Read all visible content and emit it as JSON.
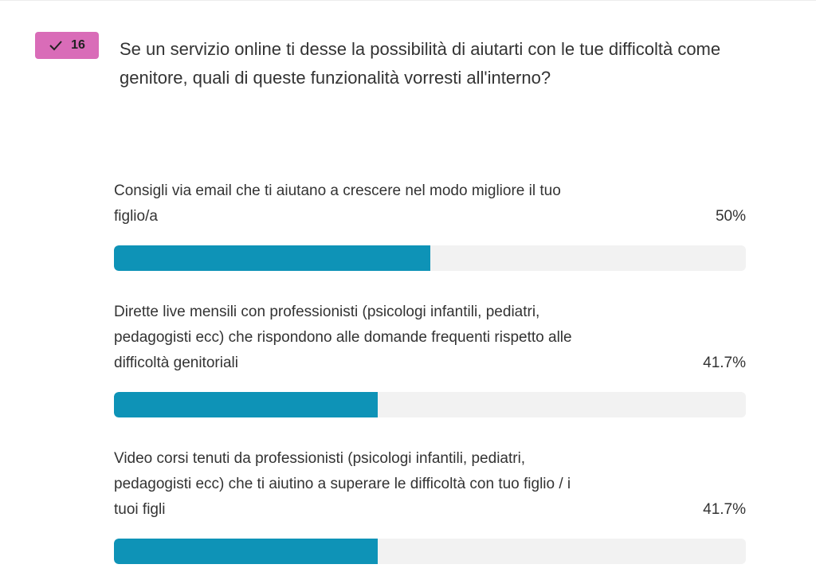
{
  "question": {
    "number": "16",
    "check_icon": "check-icon",
    "badge_color": "#d96cb8",
    "title": "Se un servizio online ti desse la possibilità di aiutarti con le tue difficoltà come genitore, quali di queste funzionalità vorresti all'interno?"
  },
  "bar_color": "#0e93b7",
  "options": [
    {
      "label": "Consigli via email che ti aiutano a crescere nel modo migliore il tuo figlio/a",
      "percent_label": "50%",
      "percent": 50
    },
    {
      "label": "Dirette live mensili con professionisti (psicologi infantili, pediatri, pedagogisti ecc) che rispondono alle domande frequenti rispetto alle difficoltà genitoriali",
      "percent_label": "41.7%",
      "percent": 41.7
    },
    {
      "label": "Video corsi tenuti da professionisti (psicologi infantili, pediatri, pedagogisti ecc) che ti aiutino a superare le difficoltà con tuo figlio / i tuoi figli",
      "percent_label": "41.7%",
      "percent": 41.7
    }
  ]
}
